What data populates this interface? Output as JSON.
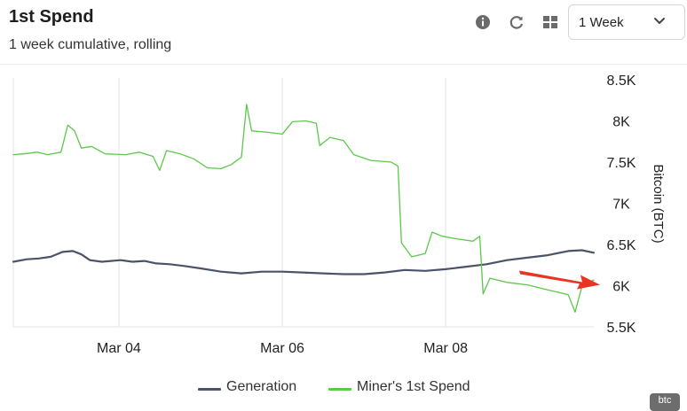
{
  "header": {
    "title": "1st Spend",
    "subtitle": "1 week cumulative, rolling",
    "range_select": "1 Week"
  },
  "toolbar": {
    "icons": [
      "info-icon",
      "refresh-icon",
      "grid-icon",
      "chevron-down-icon"
    ]
  },
  "corner_badge": "btc",
  "chart_data": {
    "type": "line",
    "title": "1st Spend",
    "subtitle": "1 week cumulative, rolling",
    "ylabel": "Bitcoin (BTC)",
    "ylim": [
      5500,
      8500
    ],
    "yticks": [
      5500,
      6000,
      6500,
      7000,
      7500,
      8000,
      8500
    ],
    "ytick_labels": [
      "5.5K",
      "6K",
      "6.5K",
      "7K",
      "7.5K",
      "8K",
      "8.5K"
    ],
    "xlim": [
      "2025-03-02T17:00",
      "2025-03-09T19:30"
    ],
    "xticks": [
      "2025-03-04",
      "2025-03-06",
      "2025-03-08"
    ],
    "xtick_labels": [
      "Mar 04",
      "Mar 06",
      "Mar 08"
    ],
    "grid": "vertical",
    "legend_position": "bottom",
    "annotation": "red arrow pointing at 6K",
    "series": [
      {
        "name": "Generation",
        "color": "#4b5368",
        "points": [
          [
            "2025-03-02T17:00",
            6290
          ],
          [
            "2025-03-02T21:00",
            6320
          ],
          [
            "2025-03-03T00:30",
            6330
          ],
          [
            "2025-03-03T04:00",
            6350
          ],
          [
            "2025-03-03T07:30",
            6410
          ],
          [
            "2025-03-03T10:30",
            6420
          ],
          [
            "2025-03-03T13:00",
            6380
          ],
          [
            "2025-03-03T15:30",
            6310
          ],
          [
            "2025-03-03T19:00",
            6290
          ],
          [
            "2025-03-04T00:30",
            6310
          ],
          [
            "2025-03-04T04:00",
            6290
          ],
          [
            "2025-03-04T07:30",
            6300
          ],
          [
            "2025-03-04T11:00",
            6270
          ],
          [
            "2025-03-04T15:00",
            6260
          ],
          [
            "2025-03-04T19:00",
            6240
          ],
          [
            "2025-03-05T00:00",
            6210
          ],
          [
            "2025-03-05T06:00",
            6170
          ],
          [
            "2025-03-05T12:00",
            6150
          ],
          [
            "2025-03-05T18:00",
            6170
          ],
          [
            "2025-03-06T00:00",
            6170
          ],
          [
            "2025-03-06T06:00",
            6160
          ],
          [
            "2025-03-06T12:00",
            6150
          ],
          [
            "2025-03-06T18:00",
            6140
          ],
          [
            "2025-03-07T00:00",
            6140
          ],
          [
            "2025-03-07T06:00",
            6160
          ],
          [
            "2025-03-07T12:00",
            6190
          ],
          [
            "2025-03-07T18:00",
            6180
          ],
          [
            "2025-03-08T00:00",
            6200
          ],
          [
            "2025-03-08T06:00",
            6230
          ],
          [
            "2025-03-08T12:00",
            6260
          ],
          [
            "2025-03-08T18:00",
            6310
          ],
          [
            "2025-03-09T00:00",
            6340
          ],
          [
            "2025-03-09T06:00",
            6370
          ],
          [
            "2025-03-09T12:00",
            6420
          ],
          [
            "2025-03-09T16:00",
            6430
          ],
          [
            "2025-03-09T19:30",
            6400
          ]
        ]
      },
      {
        "name": "Miner's 1st Spend",
        "color": "#5cc84a",
        "points": [
          [
            "2025-03-02T17:00",
            7590
          ],
          [
            "2025-03-02T20:00",
            7600
          ],
          [
            "2025-03-03T00:00",
            7620
          ],
          [
            "2025-03-03T03:00",
            7590
          ],
          [
            "2025-03-03T07:00",
            7620
          ],
          [
            "2025-03-03T09:00",
            7950
          ],
          [
            "2025-03-03T11:00",
            7880
          ],
          [
            "2025-03-03T13:00",
            7670
          ],
          [
            "2025-03-03T16:00",
            7690
          ],
          [
            "2025-03-03T20:00",
            7600
          ],
          [
            "2025-03-04T02:00",
            7590
          ],
          [
            "2025-03-04T06:00",
            7620
          ],
          [
            "2025-03-04T10:00",
            7570
          ],
          [
            "2025-03-04T12:00",
            7400
          ],
          [
            "2025-03-04T14:00",
            7640
          ],
          [
            "2025-03-04T18:00",
            7600
          ],
          [
            "2025-03-04T22:00",
            7540
          ],
          [
            "2025-03-05T02:00",
            7430
          ],
          [
            "2025-03-05T06:00",
            7420
          ],
          [
            "2025-03-05T09:00",
            7470
          ],
          [
            "2025-03-05T12:00",
            7560
          ],
          [
            "2025-03-05T13:30",
            8200
          ],
          [
            "2025-03-05T15:00",
            7880
          ],
          [
            "2025-03-05T20:00",
            7860
          ],
          [
            "2025-03-06T00:00",
            7840
          ],
          [
            "2025-03-06T03:00",
            7990
          ],
          [
            "2025-03-06T07:00",
            8000
          ],
          [
            "2025-03-06T10:00",
            7970
          ],
          [
            "2025-03-06T11:00",
            7700
          ],
          [
            "2025-03-06T14:00",
            7800
          ],
          [
            "2025-03-06T18:00",
            7760
          ],
          [
            "2025-03-06T21:00",
            7590
          ],
          [
            "2025-03-07T02:00",
            7520
          ],
          [
            "2025-03-07T08:00",
            7500
          ],
          [
            "2025-03-07T10:00",
            7450
          ],
          [
            "2025-03-07T11:00",
            6520
          ],
          [
            "2025-03-07T14:00",
            6350
          ],
          [
            "2025-03-07T18:00",
            6390
          ],
          [
            "2025-03-07T20:00",
            6650
          ],
          [
            "2025-03-07T23:00",
            6600
          ],
          [
            "2025-03-08T03:00",
            6570
          ],
          [
            "2025-03-08T08:00",
            6540
          ],
          [
            "2025-03-08T10:00",
            6600
          ],
          [
            "2025-03-08T11:00",
            5900
          ],
          [
            "2025-03-08T13:00",
            6090
          ],
          [
            "2025-03-08T18:00",
            6040
          ],
          [
            "2025-03-09T00:00",
            6010
          ],
          [
            "2025-03-09T06:00",
            5950
          ],
          [
            "2025-03-09T12:00",
            5890
          ],
          [
            "2025-03-09T14:00",
            5680
          ],
          [
            "2025-03-09T16:00",
            5990
          ],
          [
            "2025-03-09T19:30",
            6070
          ]
        ]
      }
    ]
  }
}
